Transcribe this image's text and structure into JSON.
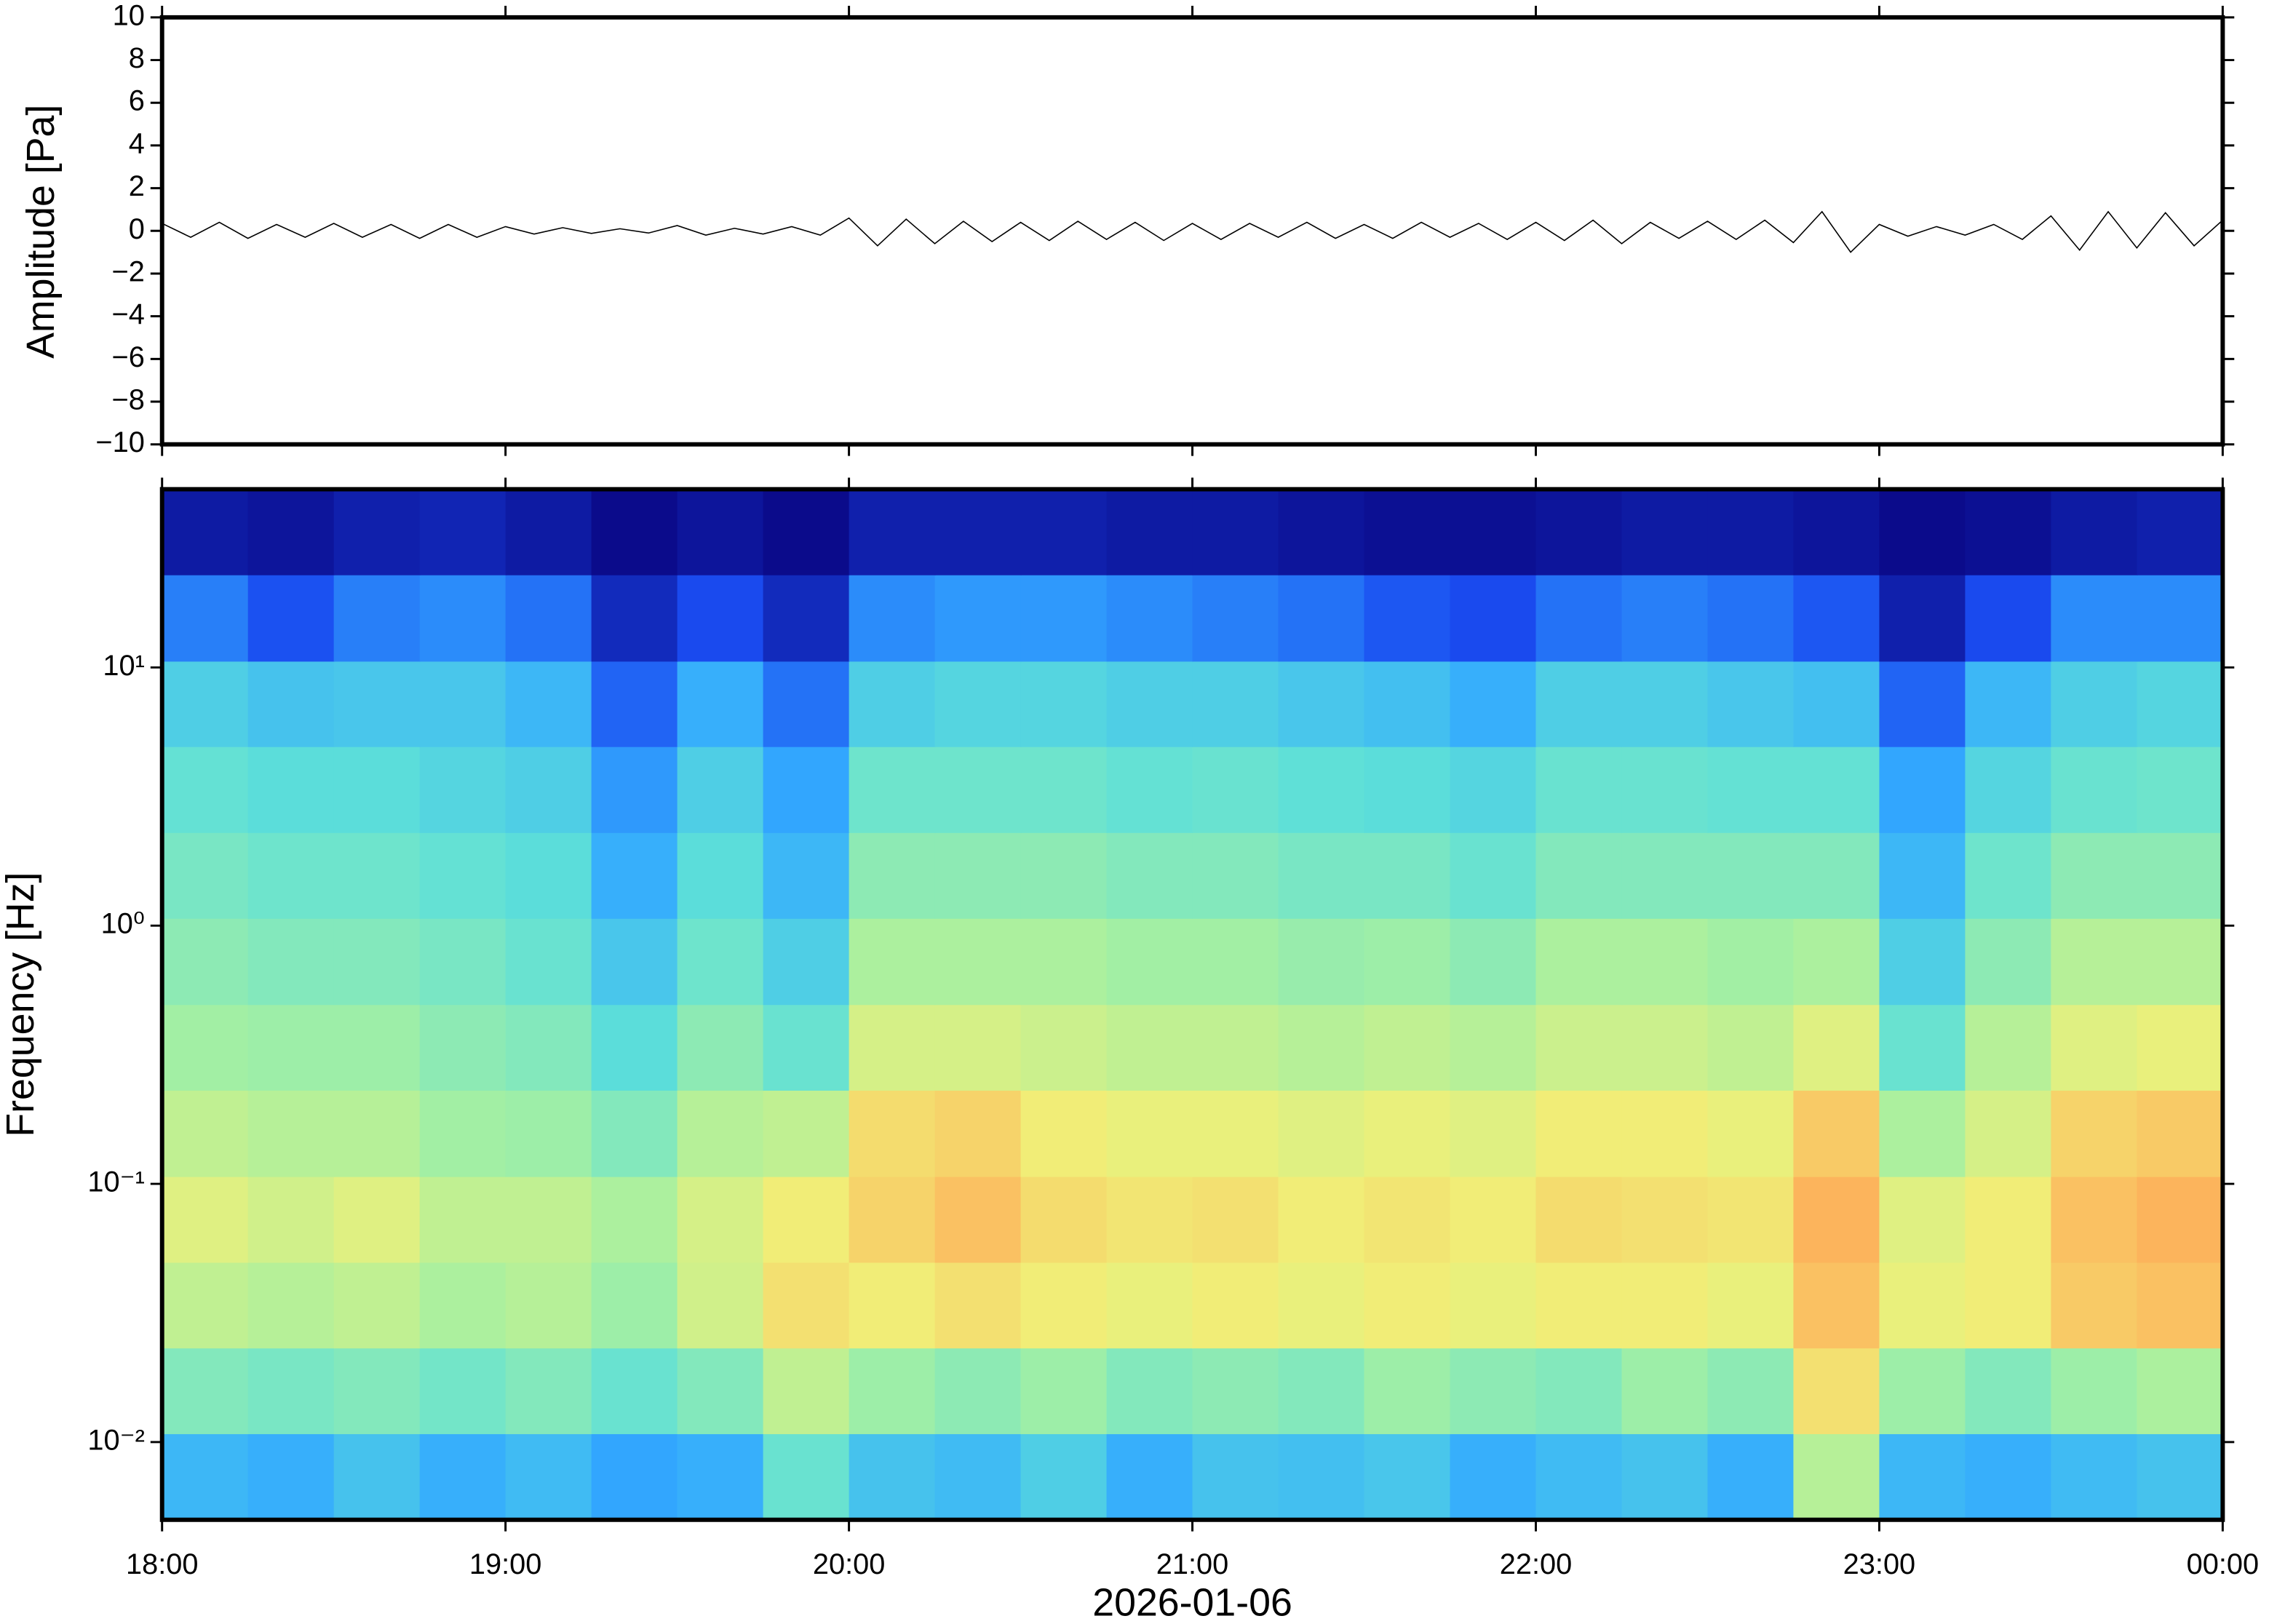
{
  "chart_data": [
    {
      "type": "line",
      "ylabel": "Amplitude [Pa]",
      "color": "#000000",
      "x": [
        "2026-01-06T18:00",
        "2026-01-06T18:05",
        "2026-01-06T18:10",
        "2026-01-06T18:15",
        "2026-01-06T18:20",
        "2026-01-06T18:25",
        "2026-01-06T18:30",
        "2026-01-06T18:35",
        "2026-01-06T18:40",
        "2026-01-06T18:45",
        "2026-01-06T18:50",
        "2026-01-06T18:55",
        "2026-01-06T19:00",
        "2026-01-06T19:05",
        "2026-01-06T19:10",
        "2026-01-06T19:15",
        "2026-01-06T19:20",
        "2026-01-06T19:25",
        "2026-01-06T19:30",
        "2026-01-06T19:35",
        "2026-01-06T19:40",
        "2026-01-06T19:45",
        "2026-01-06T19:50",
        "2026-01-06T19:55",
        "2026-01-06T20:00",
        "2026-01-06T20:05",
        "2026-01-06T20:10",
        "2026-01-06T20:15",
        "2026-01-06T20:20",
        "2026-01-06T20:25",
        "2026-01-06T20:30",
        "2026-01-06T20:35",
        "2026-01-06T20:40",
        "2026-01-06T20:45",
        "2026-01-06T20:50",
        "2026-01-06T20:55",
        "2026-01-06T21:00",
        "2026-01-06T21:05",
        "2026-01-06T21:10",
        "2026-01-06T21:15",
        "2026-01-06T21:20",
        "2026-01-06T21:25",
        "2026-01-06T21:30",
        "2026-01-06T21:35",
        "2026-01-06T21:40",
        "2026-01-06T21:45",
        "2026-01-06T21:50",
        "2026-01-06T21:55",
        "2026-01-06T22:00",
        "2026-01-06T22:05",
        "2026-01-06T22:10",
        "2026-01-06T22:15",
        "2026-01-06T22:20",
        "2026-01-06T22:25",
        "2026-01-06T22:30",
        "2026-01-06T22:35",
        "2026-01-06T22:40",
        "2026-01-06T22:45",
        "2026-01-06T22:50",
        "2026-01-06T22:55",
        "2026-01-06T23:00",
        "2026-01-06T23:05",
        "2026-01-06T23:10",
        "2026-01-06T23:15",
        "2026-01-06T23:20",
        "2026-01-06T23:25",
        "2026-01-06T23:30",
        "2026-01-06T23:35",
        "2026-01-06T23:40",
        "2026-01-06T23:45",
        "2026-01-06T23:50",
        "2026-01-06T23:55",
        "2026-01-07T00:00"
      ],
      "values": [
        0.35,
        -0.3,
        0.4,
        -0.35,
        0.3,
        -0.3,
        0.35,
        -0.3,
        0.3,
        -0.35,
        0.3,
        -0.3,
        0.2,
        -0.15,
        0.15,
        -0.12,
        0.1,
        -0.1,
        0.25,
        -0.2,
        0.12,
        -0.15,
        0.2,
        -0.2,
        0.6,
        -0.7,
        0.55,
        -0.6,
        0.45,
        -0.5,
        0.4,
        -0.45,
        0.45,
        -0.4,
        0.4,
        -0.45,
        0.35,
        -0.4,
        0.35,
        -0.3,
        0.4,
        -0.35,
        0.3,
        -0.35,
        0.4,
        -0.3,
        0.35,
        -0.4,
        0.4,
        -0.45,
        0.5,
        -0.6,
        0.4,
        -0.35,
        0.45,
        -0.4,
        0.5,
        -0.55,
        0.9,
        -1.0,
        0.3,
        -0.25,
        0.2,
        -0.2,
        0.3,
        -0.4,
        0.7,
        -0.9,
        0.9,
        -0.8,
        0.85,
        -0.7,
        0.5
      ],
      "xlim": [
        "2026-01-06T18:00",
        "2026-01-07T00:00"
      ],
      "ylim": [
        -10,
        10
      ],
      "yticks": [
        {
          "value": -10,
          "label": "−10"
        },
        {
          "value": -8,
          "label": "−8"
        },
        {
          "value": -6,
          "label": "−6"
        },
        {
          "value": -4,
          "label": "−4"
        },
        {
          "value": -2,
          "label": "−2"
        },
        0,
        2,
        4,
        6,
        8,
        10
      ]
    },
    {
      "type": "heatmap",
      "ylabel": "Frequency [Hz]",
      "xlabel": "2026-01-06",
      "log_y": true,
      "colormap": [
        "#08007a",
        "#1a4cf0",
        "#33aaff",
        "#5ee0d8",
        "#a8f0a0",
        "#f0f078",
        "#fdb15a",
        "#f25a3c"
      ],
      "zlim": [
        0,
        1
      ],
      "x": [
        "2026-01-06T18:00",
        "2026-01-06T18:15",
        "2026-01-06T18:30",
        "2026-01-06T18:45",
        "2026-01-06T19:00",
        "2026-01-06T19:15",
        "2026-01-06T19:30",
        "2026-01-06T19:45",
        "2026-01-06T20:00",
        "2026-01-06T20:15",
        "2026-01-06T20:30",
        "2026-01-06T20:45",
        "2026-01-06T21:00",
        "2026-01-06T21:15",
        "2026-01-06T21:30",
        "2026-01-06T21:45",
        "2026-01-06T22:00",
        "2026-01-06T22:15",
        "2026-01-06T22:30",
        "2026-01-06T22:45",
        "2026-01-06T23:00",
        "2026-01-06T23:15",
        "2026-01-06T23:30",
        "2026-01-06T23:45",
        "2026-01-07T00:00"
      ],
      "y": [
        0.005,
        0.0108,
        0.0232,
        0.0498,
        0.107,
        0.231,
        0.496,
        1.07,
        2.3,
        4.95,
        10.6,
        22.9,
        49
      ],
      "z": [
        [
          0.32,
          0.3,
          0.35,
          0.3,
          0.33,
          0.28,
          0.3,
          0.45,
          0.35,
          0.33,
          0.38,
          0.3,
          0.35,
          0.34,
          0.36,
          0.3,
          0.33,
          0.35,
          0.3,
          0.6,
          0.32,
          0.3,
          0.33,
          0.35
        ],
        [
          0.5,
          0.48,
          0.5,
          0.47,
          0.5,
          0.45,
          0.5,
          0.62,
          0.55,
          0.52,
          0.55,
          0.5,
          0.52,
          0.5,
          0.55,
          0.52,
          0.5,
          0.55,
          0.52,
          0.75,
          0.55,
          0.5,
          0.55,
          0.58
        ],
        [
          0.62,
          0.6,
          0.62,
          0.58,
          0.6,
          0.55,
          0.65,
          0.75,
          0.72,
          0.75,
          0.72,
          0.7,
          0.72,
          0.7,
          0.72,
          0.7,
          0.72,
          0.72,
          0.7,
          0.82,
          0.7,
          0.72,
          0.8,
          0.82
        ],
        [
          0.68,
          0.65,
          0.68,
          0.62,
          0.62,
          0.58,
          0.66,
          0.72,
          0.78,
          0.82,
          0.76,
          0.74,
          0.75,
          0.72,
          0.74,
          0.72,
          0.76,
          0.75,
          0.74,
          0.85,
          0.68,
          0.72,
          0.82,
          0.85
        ],
        [
          0.62,
          0.6,
          0.6,
          0.56,
          0.55,
          0.5,
          0.6,
          0.62,
          0.76,
          0.78,
          0.72,
          0.7,
          0.7,
          0.68,
          0.7,
          0.68,
          0.72,
          0.72,
          0.7,
          0.8,
          0.58,
          0.66,
          0.78,
          0.8
        ],
        [
          0.56,
          0.55,
          0.55,
          0.52,
          0.5,
          0.42,
          0.52,
          0.45,
          0.66,
          0.66,
          0.64,
          0.62,
          0.62,
          0.6,
          0.62,
          0.6,
          0.64,
          0.64,
          0.62,
          0.68,
          0.45,
          0.6,
          0.68,
          0.7
        ],
        [
          0.52,
          0.5,
          0.5,
          0.48,
          0.45,
          0.36,
          0.46,
          0.38,
          0.58,
          0.58,
          0.58,
          0.56,
          0.56,
          0.54,
          0.55,
          0.52,
          0.58,
          0.58,
          0.56,
          0.58,
          0.38,
          0.52,
          0.6,
          0.6
        ],
        [
          0.48,
          0.46,
          0.46,
          0.44,
          0.42,
          0.3,
          0.42,
          0.32,
          0.52,
          0.52,
          0.52,
          0.5,
          0.5,
          0.48,
          0.48,
          0.45,
          0.5,
          0.5,
          0.5,
          0.5,
          0.32,
          0.46,
          0.52,
          0.52
        ],
        [
          0.44,
          0.42,
          0.42,
          0.4,
          0.38,
          0.26,
          0.38,
          0.28,
          0.46,
          0.46,
          0.46,
          0.44,
          0.45,
          0.43,
          0.42,
          0.4,
          0.45,
          0.45,
          0.44,
          0.44,
          0.28,
          0.4,
          0.45,
          0.46
        ],
        [
          0.38,
          0.35,
          0.36,
          0.36,
          0.32,
          0.18,
          0.3,
          0.2,
          0.38,
          0.4,
          0.4,
          0.38,
          0.38,
          0.36,
          0.34,
          0.3,
          0.38,
          0.38,
          0.36,
          0.34,
          0.18,
          0.32,
          0.38,
          0.4
        ],
        [
          0.22,
          0.15,
          0.22,
          0.24,
          0.2,
          0.08,
          0.14,
          0.08,
          0.24,
          0.26,
          0.26,
          0.24,
          0.22,
          0.2,
          0.16,
          0.14,
          0.2,
          0.22,
          0.2,
          0.16,
          0.06,
          0.14,
          0.24,
          0.24
        ],
        [
          0.05,
          0.04,
          0.06,
          0.07,
          0.05,
          0.02,
          0.04,
          0.02,
          0.06,
          0.06,
          0.06,
          0.05,
          0.05,
          0.04,
          0.03,
          0.03,
          0.04,
          0.05,
          0.05,
          0.04,
          0.02,
          0.03,
          0.05,
          0.06
        ]
      ],
      "xlim": [
        "2026-01-06T18:00",
        "2026-01-07T00:00"
      ],
      "ylim": [
        0.005,
        49
      ],
      "xticks": [
        {
          "value": "2026-01-06T18:00",
          "label": "18:00"
        },
        {
          "value": "2026-01-06T19:00",
          "label": "19:00"
        },
        {
          "value": "2026-01-06T20:00",
          "label": "20:00"
        },
        {
          "value": "2026-01-06T21:00",
          "label": "21:00"
        },
        {
          "value": "2026-01-06T22:00",
          "label": "22:00"
        },
        {
          "value": "2026-01-06T23:00",
          "label": "23:00"
        },
        {
          "value": "2026-01-07T00:00",
          "label": "00:00"
        }
      ],
      "yticks": [
        {
          "value": 0.01,
          "label": "10⁻²"
        },
        {
          "value": 0.1,
          "label": "10⁻¹"
        },
        {
          "value": 1,
          "label": "10⁰"
        },
        {
          "value": 10,
          "label": "10¹"
        }
      ]
    }
  ]
}
